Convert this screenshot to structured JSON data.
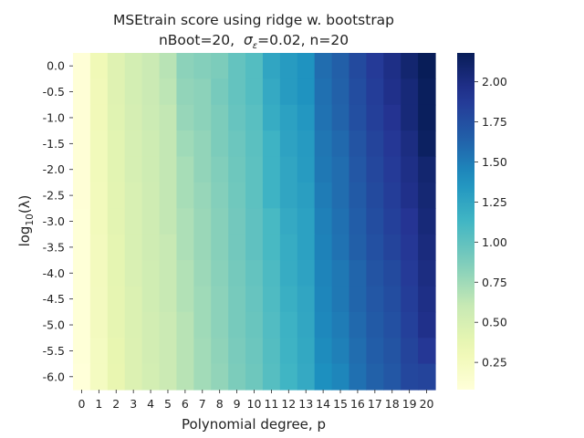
{
  "chart_data": {
    "type": "heatmap",
    "title": "MSEtrain score using ridge w. bootstrap",
    "subtitle": {
      "prefix": "nBoot=20,",
      "sigma_symbol": "σ",
      "sigma_subscript": "ε",
      "suffix": "=0.02, n=20"
    },
    "xlabel": "Polynomial degree, p",
    "ylabel": {
      "prefix": "log",
      "subscript": "10",
      "suffix": "(λ)"
    },
    "x_categories": [
      "0",
      "1",
      "2",
      "3",
      "4",
      "5",
      "6",
      "7",
      "8",
      "9",
      "10",
      "11",
      "12",
      "13",
      "14",
      "15",
      "16",
      "17",
      "18",
      "19",
      "20"
    ],
    "y_categories": [
      "0.0",
      "-0.5",
      "-1.0",
      "-1.5",
      "-2.0",
      "-2.5",
      "-3.0",
      "-3.5",
      "-4.0",
      "-4.5",
      "-5.0",
      "-5.5",
      "-6.0"
    ],
    "colormap": "YlGnBu",
    "colorbar": {
      "min": 0.08,
      "max": 2.18,
      "ticks": [
        0.25,
        0.5,
        0.75,
        1.0,
        1.25,
        1.5,
        1.75,
        2.0
      ],
      "tick_labels": [
        "0.25",
        "0.50",
        "0.75",
        "1.00",
        "1.25",
        "1.50",
        "1.75",
        "2.00"
      ]
    },
    "values": [
      [
        0.1,
        0.3,
        0.44,
        0.52,
        0.58,
        0.66,
        0.82,
        0.85,
        0.88,
        0.98,
        1.05,
        1.25,
        1.32,
        1.38,
        1.58,
        1.65,
        1.78,
        1.88,
        1.98,
        2.08,
        2.18
      ],
      [
        0.1,
        0.29,
        0.44,
        0.52,
        0.58,
        0.64,
        0.8,
        0.82,
        0.9,
        0.98,
        1.05,
        1.22,
        1.32,
        1.38,
        1.56,
        1.64,
        1.76,
        1.86,
        1.96,
        2.04,
        2.16
      ],
      [
        0.1,
        0.29,
        0.43,
        0.51,
        0.57,
        0.62,
        0.78,
        0.82,
        0.88,
        0.97,
        1.03,
        1.2,
        1.28,
        1.35,
        1.55,
        1.63,
        1.75,
        1.85,
        1.93,
        2.04,
        2.16
      ],
      [
        0.1,
        0.28,
        0.42,
        0.5,
        0.56,
        0.62,
        0.75,
        0.8,
        0.88,
        0.95,
        1.02,
        1.15,
        1.27,
        1.33,
        1.53,
        1.6,
        1.72,
        1.82,
        1.9,
        2.0,
        2.14
      ],
      [
        0.1,
        0.28,
        0.42,
        0.5,
        0.56,
        0.62,
        0.72,
        0.8,
        0.86,
        0.94,
        1.01,
        1.15,
        1.25,
        1.32,
        1.52,
        1.58,
        1.7,
        1.8,
        1.88,
        1.98,
        2.08
      ],
      [
        0.1,
        0.27,
        0.41,
        0.49,
        0.55,
        0.62,
        0.72,
        0.78,
        0.85,
        0.93,
        1.01,
        1.15,
        1.25,
        1.3,
        1.5,
        1.58,
        1.68,
        1.78,
        1.86,
        1.96,
        2.06
      ],
      [
        0.09,
        0.27,
        0.41,
        0.49,
        0.55,
        0.62,
        0.7,
        0.77,
        0.84,
        0.92,
        1.0,
        1.1,
        1.22,
        1.28,
        1.48,
        1.56,
        1.66,
        1.76,
        1.84,
        1.92,
        2.04
      ],
      [
        0.09,
        0.26,
        0.4,
        0.49,
        0.55,
        0.6,
        0.7,
        0.77,
        0.84,
        0.92,
        1.0,
        1.1,
        1.2,
        1.28,
        1.47,
        1.55,
        1.65,
        1.74,
        1.82,
        1.9,
        2.02
      ],
      [
        0.09,
        0.26,
        0.4,
        0.48,
        0.54,
        0.6,
        0.68,
        0.76,
        0.83,
        0.91,
        0.98,
        1.08,
        1.2,
        1.27,
        1.46,
        1.52,
        1.62,
        1.72,
        1.78,
        1.88,
        2.0
      ],
      [
        0.09,
        0.25,
        0.39,
        0.47,
        0.54,
        0.6,
        0.68,
        0.75,
        0.82,
        0.9,
        0.97,
        1.07,
        1.18,
        1.25,
        1.45,
        1.52,
        1.62,
        1.7,
        1.76,
        1.86,
        1.98
      ],
      [
        0.09,
        0.25,
        0.39,
        0.47,
        0.53,
        0.58,
        0.66,
        0.75,
        0.82,
        0.9,
        0.96,
        1.06,
        1.16,
        1.24,
        1.44,
        1.5,
        1.6,
        1.68,
        1.74,
        1.84,
        1.96
      ],
      [
        0.09,
        0.24,
        0.38,
        0.46,
        0.53,
        0.58,
        0.66,
        0.74,
        0.81,
        0.89,
        0.95,
        1.05,
        1.15,
        1.23,
        1.42,
        1.48,
        1.58,
        1.66,
        1.72,
        1.82,
        1.9
      ],
      [
        0.08,
        0.24,
        0.37,
        0.46,
        0.52,
        0.58,
        0.66,
        0.74,
        0.8,
        0.88,
        0.94,
        1.04,
        1.14,
        1.22,
        1.4,
        1.45,
        1.56,
        1.64,
        1.7,
        1.8,
        1.82
      ]
    ]
  }
}
